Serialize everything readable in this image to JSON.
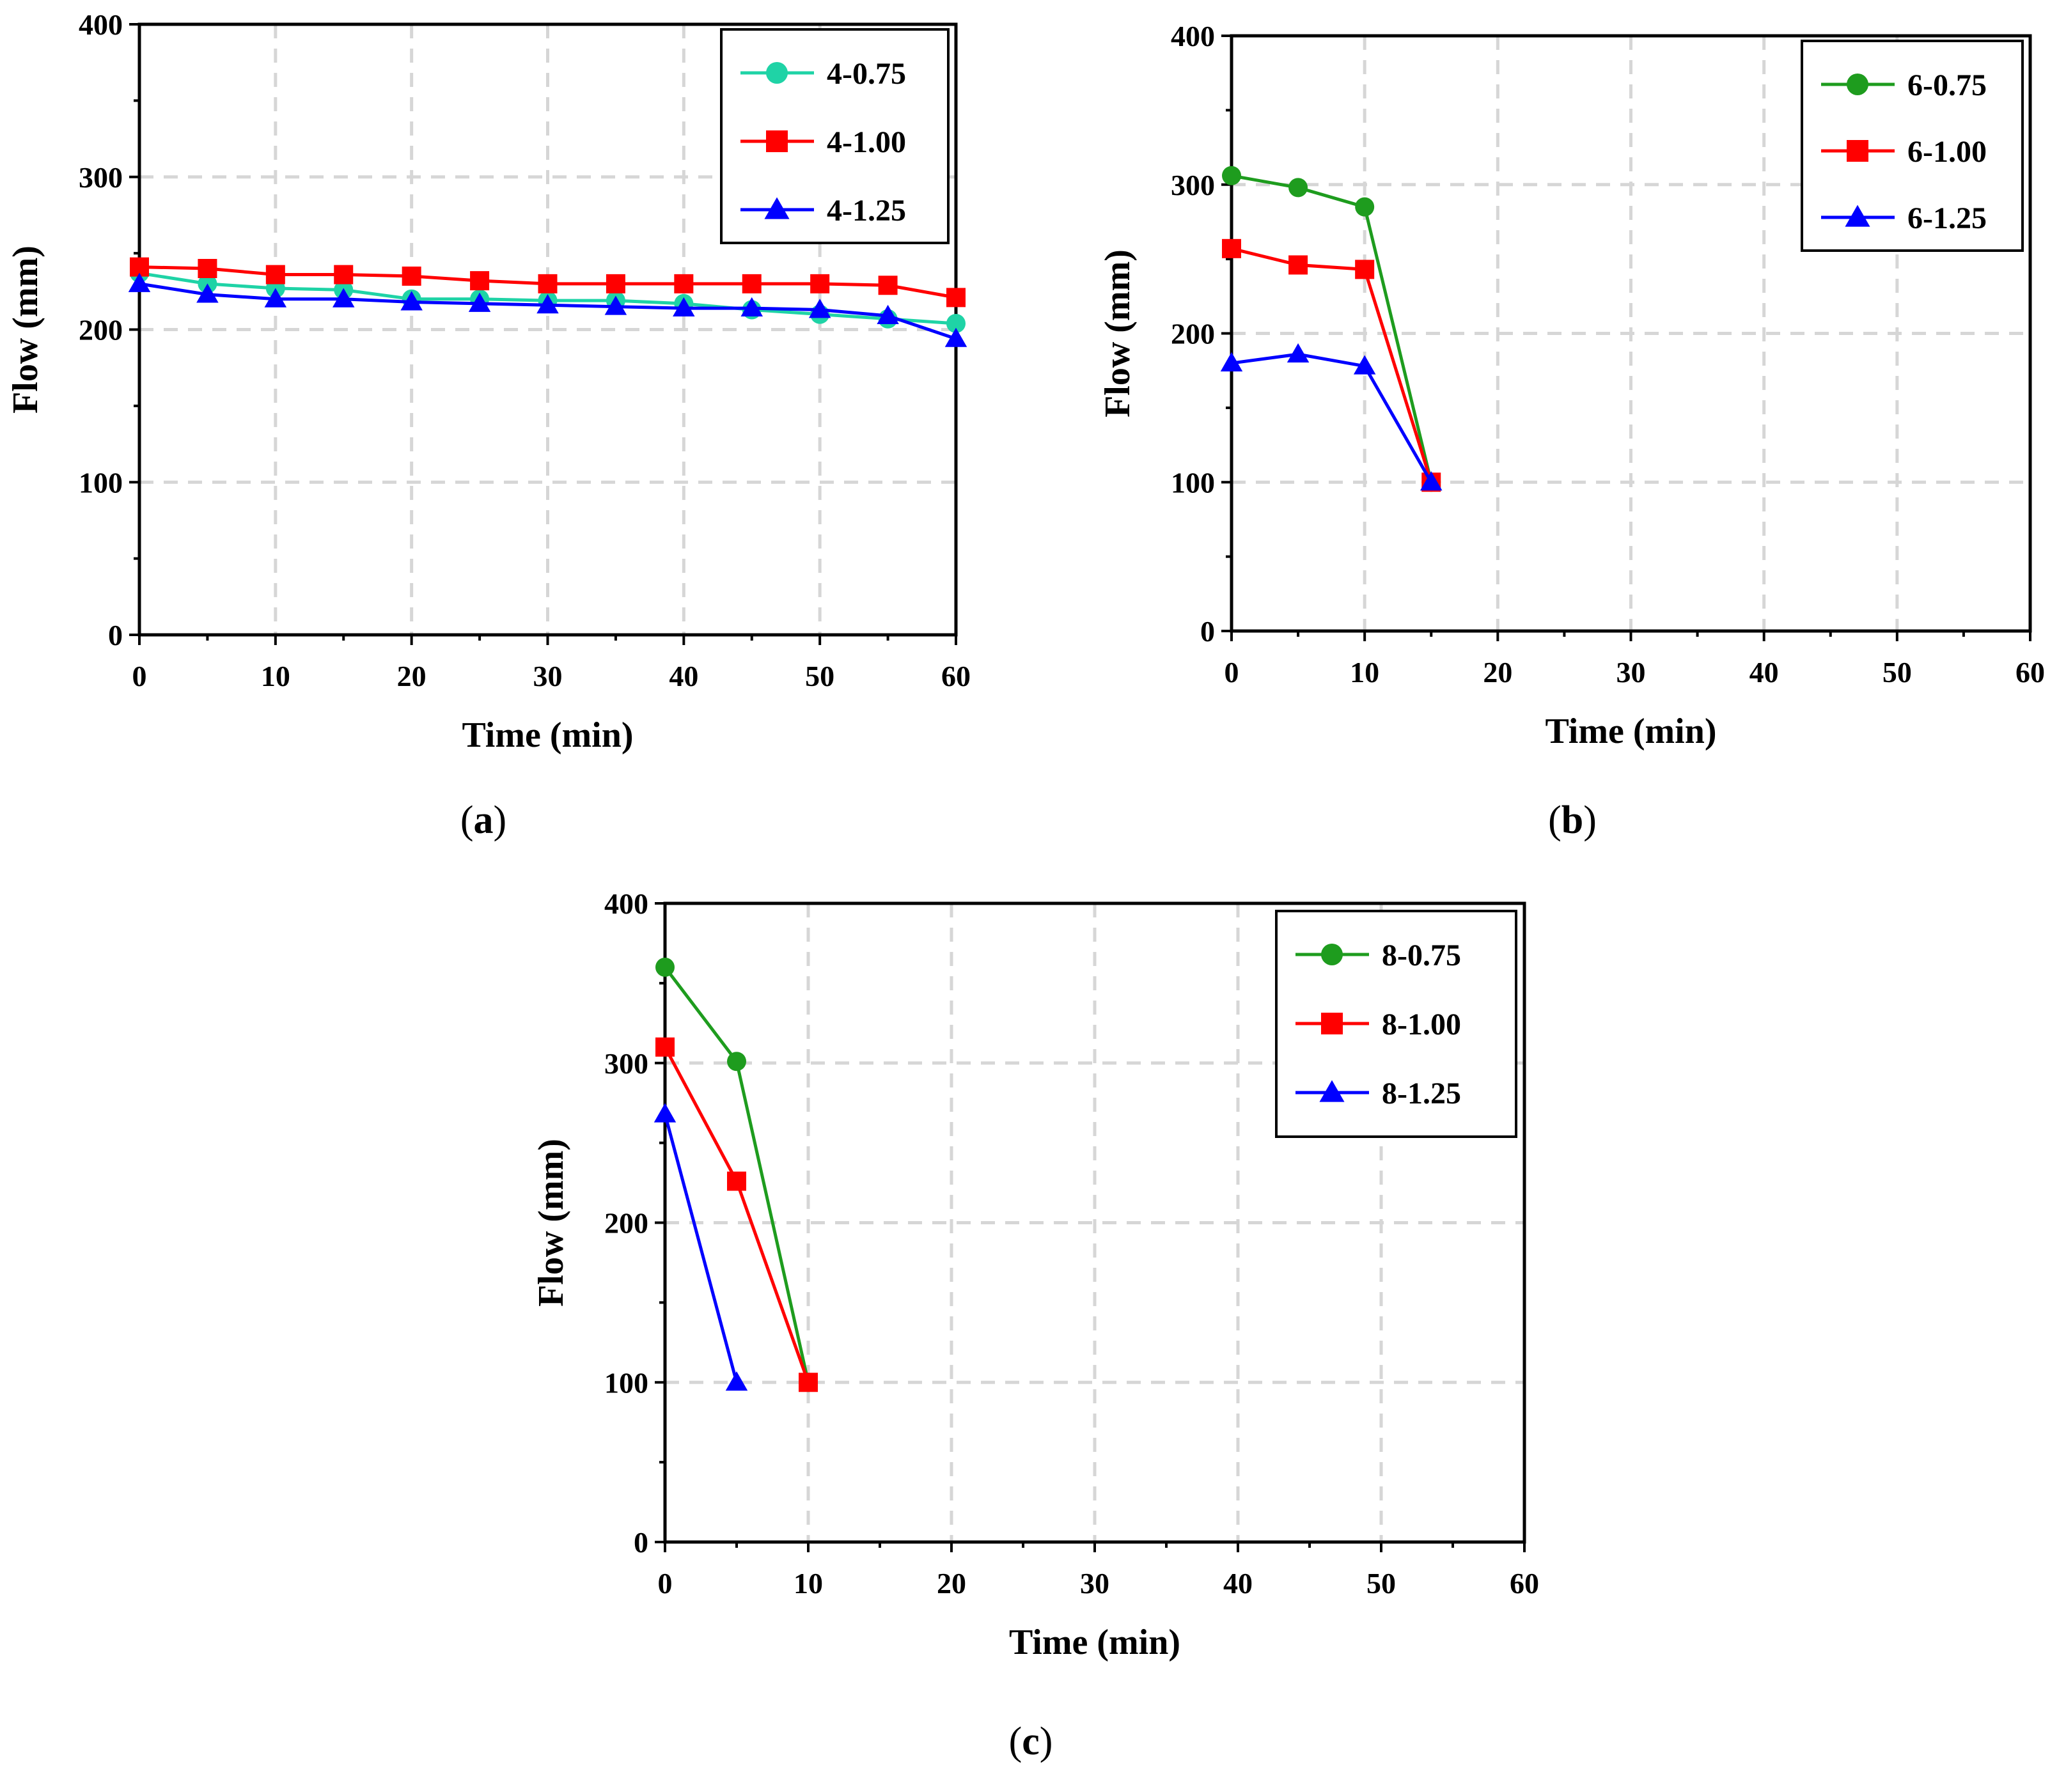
{
  "chart_data": [
    {
      "type": "line",
      "panel_label": "a",
      "xlabel": "Time (min)",
      "ylabel": "Flow (mm)",
      "xlim": [
        0,
        60
      ],
      "ylim": [
        0,
        400
      ],
      "xticks": [
        0,
        10,
        20,
        30,
        40,
        50,
        60
      ],
      "yticks": [
        0,
        100,
        200,
        300,
        400
      ],
      "grid": true,
      "legend_position": "top-right",
      "series": [
        {
          "name": "4-0.75",
          "color": "#1fd3a6",
          "marker": "circle",
          "x": [
            0,
            5,
            10,
            15,
            20,
            25,
            30,
            35,
            40,
            45,
            50,
            55,
            60
          ],
          "y": [
            237,
            230,
            227,
            226,
            220,
            220,
            219,
            219,
            217,
            213,
            210,
            207,
            204
          ]
        },
        {
          "name": "4-1.00",
          "color": "#ff0000",
          "marker": "square",
          "x": [
            0,
            5,
            10,
            15,
            20,
            25,
            30,
            35,
            40,
            45,
            50,
            55,
            60
          ],
          "y": [
            241,
            240,
            236,
            236,
            235,
            232,
            230,
            230,
            230,
            230,
            230,
            229,
            221
          ]
        },
        {
          "name": "4-1.25",
          "color": "#0000ff",
          "marker": "triangle",
          "x": [
            0,
            5,
            10,
            15,
            20,
            25,
            30,
            35,
            40,
            45,
            50,
            55,
            60
          ],
          "y": [
            230,
            223,
            220,
            220,
            218,
            217,
            216,
            215,
            214,
            214,
            213,
            209,
            194
          ]
        }
      ]
    },
    {
      "type": "line",
      "panel_label": "b",
      "xlabel": "Time (min)",
      "ylabel": "Flow (mm)",
      "xlim": [
        0,
        60
      ],
      "ylim": [
        0,
        400
      ],
      "xticks": [
        0,
        10,
        20,
        30,
        40,
        50,
        60
      ],
      "yticks": [
        0,
        100,
        200,
        300,
        400
      ],
      "grid": true,
      "legend_position": "top-right",
      "series": [
        {
          "name": "6-0.75",
          "color": "#1e9c1e",
          "marker": "circle",
          "x": [
            0,
            5,
            10,
            15
          ],
          "y": [
            306,
            298,
            285,
            100
          ]
        },
        {
          "name": "6-1.00",
          "color": "#ff0000",
          "marker": "square",
          "x": [
            0,
            5,
            10,
            15
          ],
          "y": [
            257,
            246,
            243,
            100
          ]
        },
        {
          "name": "6-1.25",
          "color": "#0000ff",
          "marker": "triangle",
          "x": [
            0,
            5,
            10,
            15
          ],
          "y": [
            180,
            186,
            178,
            100
          ]
        }
      ]
    },
    {
      "type": "line",
      "panel_label": "c",
      "xlabel": "Time (min)",
      "ylabel": "Flow (mm)",
      "xlim": [
        0,
        60
      ],
      "ylim": [
        0,
        400
      ],
      "xticks": [
        0,
        10,
        20,
        30,
        40,
        50,
        60
      ],
      "yticks": [
        0,
        100,
        200,
        300,
        400
      ],
      "grid": true,
      "legend_position": "top-right",
      "series": [
        {
          "name": "8-0.75",
          "color": "#1e9c1e",
          "marker": "circle",
          "x": [
            0,
            5,
            10
          ],
          "y": [
            360,
            301,
            100
          ]
        },
        {
          "name": "8-1.00",
          "color": "#ff0000",
          "marker": "square",
          "x": [
            0,
            5,
            10
          ],
          "y": [
            310,
            226,
            100
          ]
        },
        {
          "name": "8-1.25",
          "color": "#0000ff",
          "marker": "triangle",
          "x": [
            0,
            5
          ],
          "y": [
            268,
            100
          ]
        }
      ]
    }
  ]
}
